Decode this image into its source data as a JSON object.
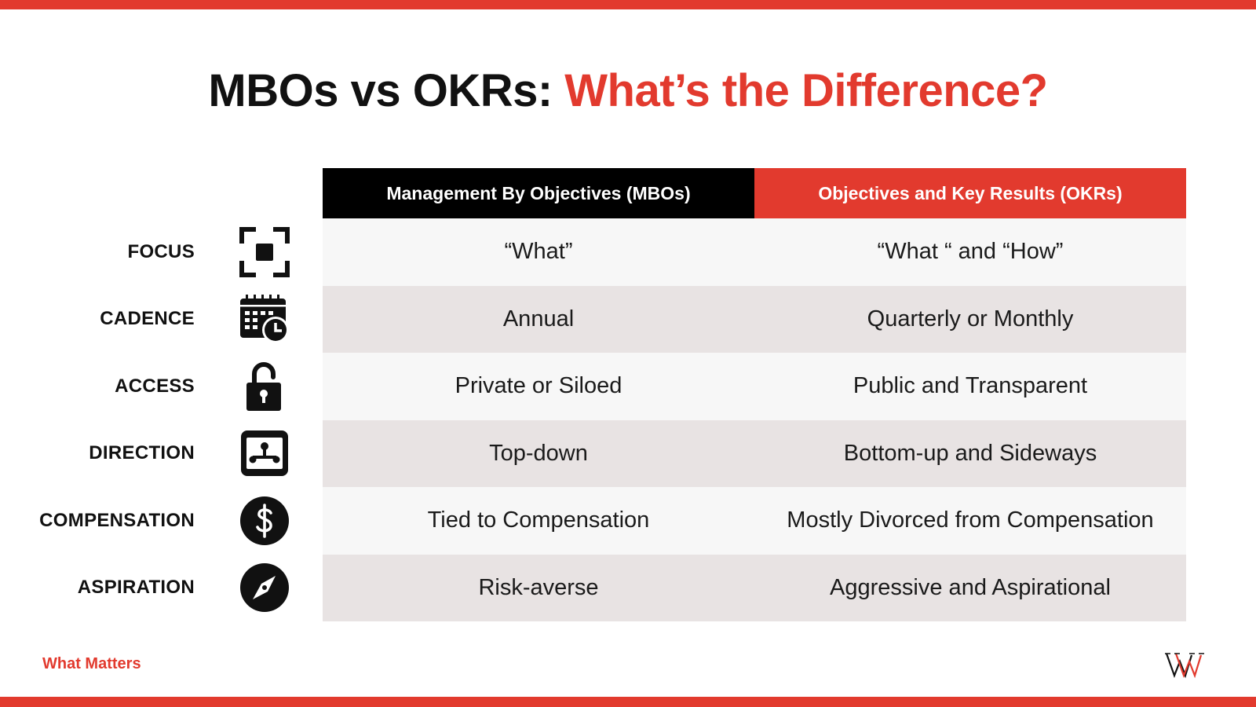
{
  "title": {
    "part1": "MBOs vs OKRs: ",
    "part2": "What’s the Difference?"
  },
  "table": {
    "headers": {
      "mbo": "Management By Objectives (MBOs)",
      "okr": "Objectives and Key Results (OKRs)"
    },
    "rows": [
      {
        "label": "FOCUS",
        "icon": "focus-icon",
        "mbo": "“What”",
        "okr": "“What “ and “How”"
      },
      {
        "label": "CADENCE",
        "icon": "calendar-clock-icon",
        "mbo": "Annual",
        "okr": "Quarterly or Monthly"
      },
      {
        "label": "ACCESS",
        "icon": "unlock-icon",
        "mbo": "Private or Siloed",
        "okr": "Public and Transparent"
      },
      {
        "label": "DIRECTION",
        "icon": "hierarchy-icon",
        "mbo": "Top-down",
        "okr": "Bottom-up and Sideways"
      },
      {
        "label": "COMPENSATION",
        "icon": "dollar-icon",
        "mbo": "Tied to Compensation",
        "okr": "Mostly Divorced from Compensation"
      },
      {
        "label": "ASPIRATION",
        "icon": "compass-icon",
        "mbo": "Risk-averse",
        "okr": "Aggressive and Aspirational"
      }
    ]
  },
  "footer": {
    "brand": "What Matters",
    "logo_icon": "what-matters-logo-icon"
  },
  "colors": {
    "accent": "#e23a2e",
    "header_dark": "#000000",
    "row_light": "#f7f7f7",
    "row_shaded": "#e8e3e3"
  }
}
